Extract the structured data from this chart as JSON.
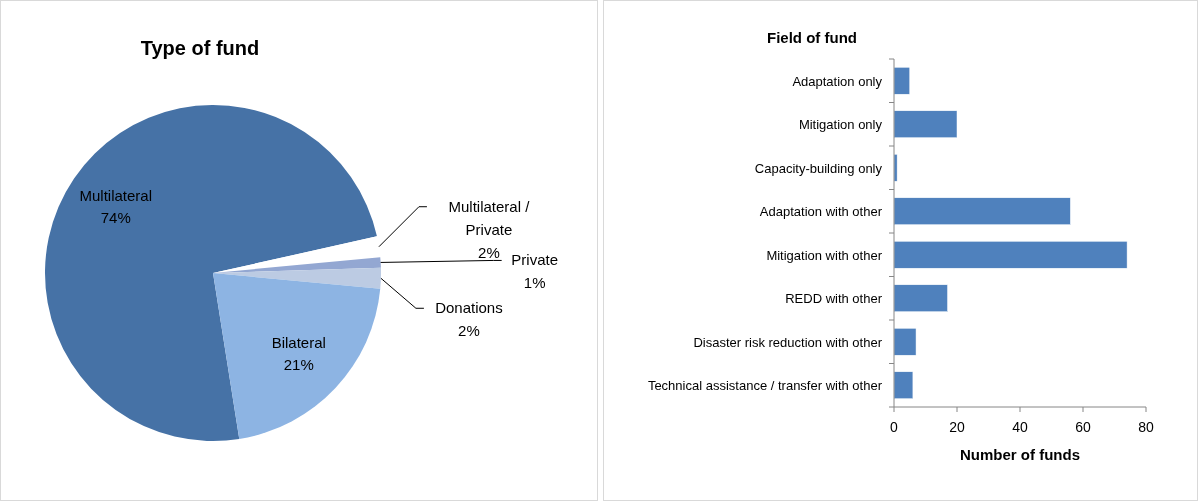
{
  "chart_data": [
    {
      "type": "pie",
      "title": "Type of fund",
      "categories": [
        "Multilateral",
        "Multilateral / Private",
        "Private",
        "Donations",
        "Bilateral"
      ],
      "values": [
        74,
        2,
        1,
        2,
        21
      ],
      "value_labels": [
        "74%",
        "2%",
        "1%",
        "2%",
        "21%"
      ],
      "colors": [
        "#4672a6",
        "#ffffff",
        "#93a7d2",
        "#bccbe3",
        "#8db4e3"
      ]
    },
    {
      "type": "bar",
      "orientation": "horizontal",
      "title": "Field of fund",
      "xlabel": "Number of funds",
      "categories": [
        "Adaptation only",
        "Mitigation only",
        "Capacity-building only",
        "Adaptation with other",
        "Mitigation with other",
        "REDD with other",
        "Disaster risk reduction with other",
        "Technical assistance / transfer with other"
      ],
      "values": [
        5,
        20,
        1,
        56,
        74,
        17,
        7,
        6
      ],
      "color": "#4f81bd",
      "xlim": [
        0,
        80
      ],
      "xticks": [
        0,
        20,
        40,
        60,
        80
      ],
      "grid": false
    }
  ]
}
